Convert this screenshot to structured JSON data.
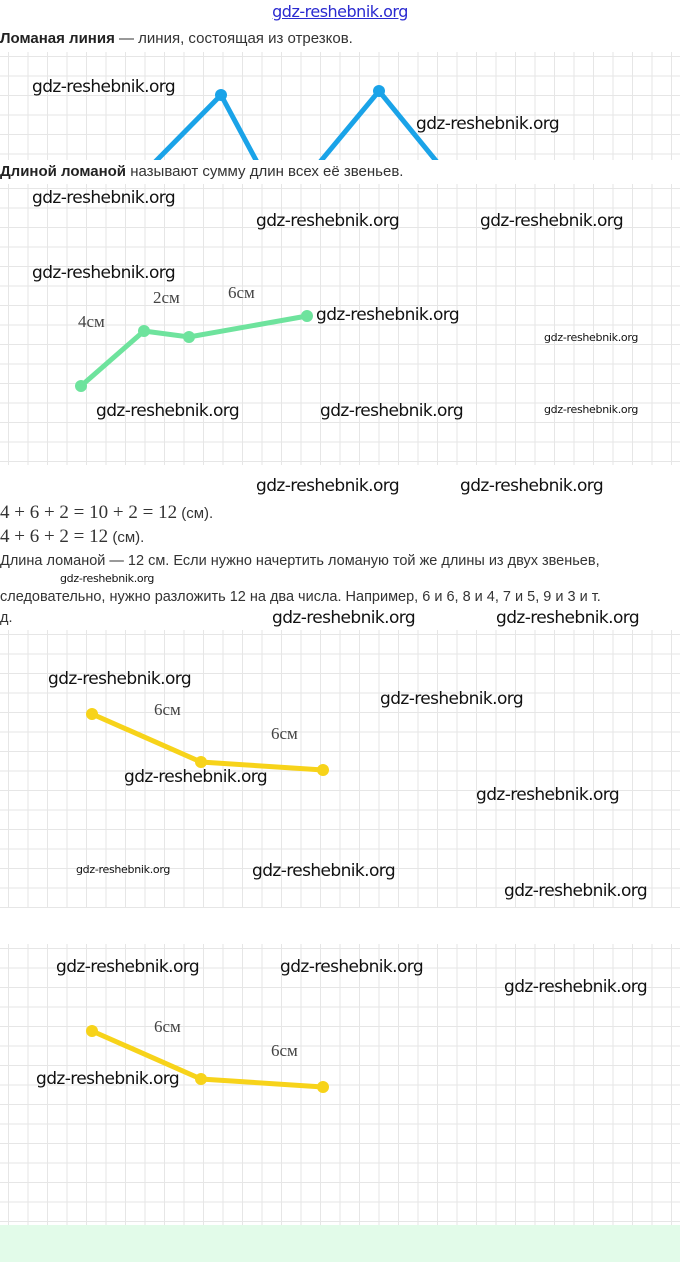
{
  "header_watermark": "gdz-reshebnik.org",
  "definition1": {
    "term": "Ломаная линия",
    "rest": " — линия, состоящая из отрезков."
  },
  "definition2": {
    "term": "Длиной ломаной",
    "rest": " называют сумму длин всех её звеньев."
  },
  "figure_green": {
    "color": "#6ee39d",
    "labels": [
      "4см",
      "2см",
      "6см"
    ]
  },
  "figure_blue": {
    "color": "#1aa3e8"
  },
  "figure_yellow_1": {
    "color": "#f7d31a",
    "labels": [
      "6см",
      "6см"
    ]
  },
  "figure_yellow_2": {
    "color": "#f7d31a",
    "labels": [
      "6см",
      "6см"
    ]
  },
  "equation1": {
    "math": "4 + 6 + 2 = 10 + 2 = 12",
    "unit": " (см)."
  },
  "equation2": {
    "math": "4 + 6 + 2 = 12",
    "unit": " (см)."
  },
  "paragraph": {
    "line1": "Длина ломаной — 12 см. Если нужно начертить ломаную той же длины из двух звеньев,",
    "line2": "следовательно, нужно разложить 12 на два числа. Например, 6 и 6, 8 и 4, 7 и 5, 9 и 3 и т.",
    "line3": "д."
  },
  "watermarks": [
    "gdz-reshebnik.org",
    "gdz-reshebnik.org",
    "gdz-reshebnik.org",
    "gdz-reshebnik.org",
    "gdz-reshebnik.org",
    "gdz-reshebnik.org",
    "gdz-reshebnik.org",
    "gdz-reshebnik.org",
    "gdz-reshebnik.org",
    "gdz-reshebnik.org",
    "gdz-reshebnik.org",
    "gdz-reshebnik.org",
    "gdz-reshebnik.org",
    "gdz-reshebnik.org",
    "gdz-reshebnik.org",
    "gdz-reshebnik.org",
    "gdz-reshebnik.org",
    "gdz-reshebnik.org",
    "gdz-reshebnik.org",
    "gdz-reshebnik.org",
    "gdz-reshebnik.org",
    "gdz-reshebnik.org",
    "gdz-reshebnik.org",
    "gdz-reshebnik.org",
    "gdz-reshebnik.org",
    "gdz-reshebnik.org",
    "gdz-reshebnik.org"
  ]
}
